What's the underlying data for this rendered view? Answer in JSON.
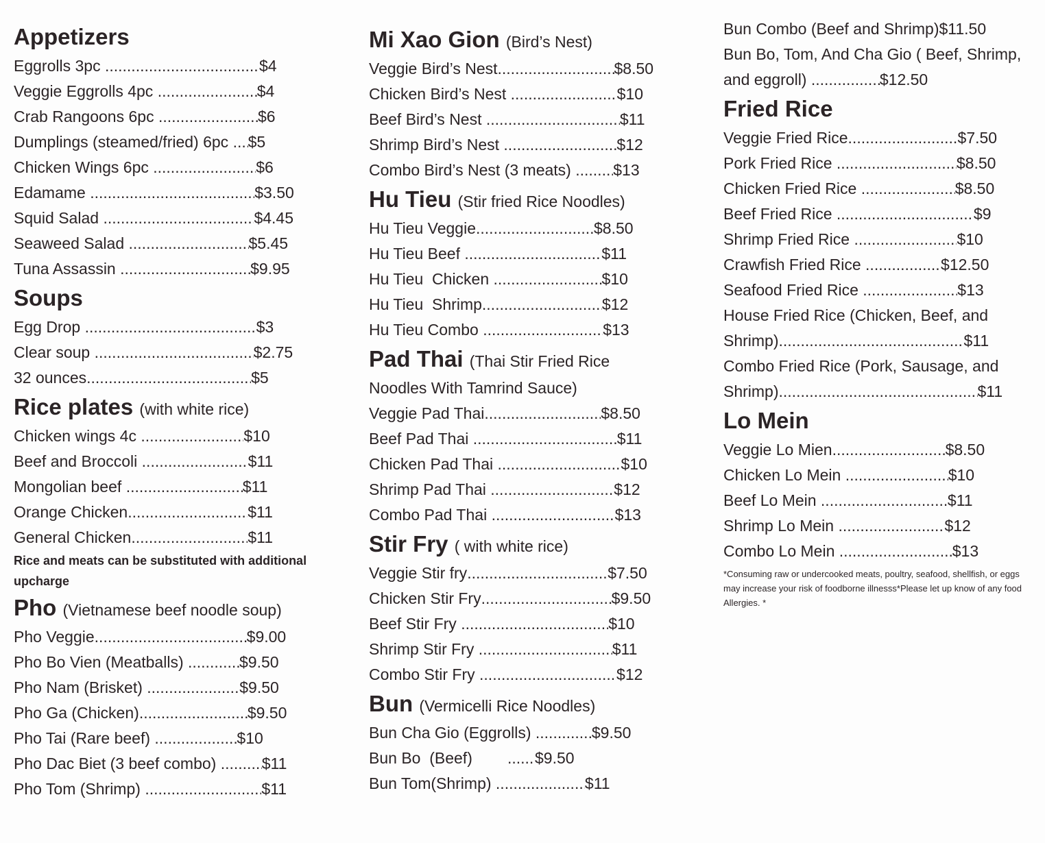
{
  "columns": [
    {
      "sections": [
        {
          "title": "Appetizers",
          "items": [
            {
              "name": "Eggrolls 3pc ",
              "price": "$4",
              "dots": 225
            },
            {
              "name": "Veggie Eggrolls 4pc ",
              "price": "$4",
              "dots": 145
            },
            {
              "name": "Crab Rangoons 6pc ",
              "price": "$6",
              "dots": 145
            },
            {
              "name": "Dumplings (steamed/fried) 6pc ",
              "price": "$5",
              "dots": 22
            },
            {
              "name": "Chicken Wings 6pc ",
              "price": "$6",
              "dots": 150
            },
            {
              "name": "Edamame ",
              "price": "$3.50",
              "dots": 240
            },
            {
              "name": "Squid Salad ",
              "price": "$4.45",
              "dots": 220
            },
            {
              "name": "Seaweed Salad ",
              "price": "$5.45",
              "dots": 175
            },
            {
              "name": "Tuna Assassin ",
              "price": "$9.95",
              "dots": 190
            }
          ]
        },
        {
          "title": "Soups",
          "items": [
            {
              "name": "Egg Drop ",
              "price": "$3",
              "dots": 250
            },
            {
              "name": "Clear soup ",
              "price": "$2.75",
              "dots": 232
            },
            {
              "name": "32 ounces",
              "price": "$5",
              "dots": 240
            }
          ]
        },
        {
          "title": "Rice plates",
          "subtitle": "(with white rice)",
          "items": [
            {
              "name": "Chicken wings 4c ",
              "price": "$10",
              "dots": 150
            },
            {
              "name": "Beef and Broccoli ",
              "price": "$11",
              "dots": 155
            },
            {
              "name": "Mongolian beef ",
              "price": "$11",
              "dots": 170
            },
            {
              "name": "Orange Chicken",
              "price": "$11",
              "dots": 175
            },
            {
              "name": "General Chicken",
              "price": "$11",
              "dots": 170
            }
          ],
          "note": "Rice and meats can be substituted with additional upcharge"
        },
        {
          "title": "Pho",
          "subtitle": "(Vietnamese beef noodle soup)",
          "items": [
            {
              "name": "Pho Veggie",
              "price": "$9.00",
              "dots": 222
            },
            {
              "name": "Pho Bo Vien (Meatballs) ",
              "price": "$9.50",
              "dots": 75
            },
            {
              "name": "Pho Nam (Brisket) ",
              "price": "$9.50",
              "dots": 135
            },
            {
              "name": "Pho Ga (Chicken)",
              "price": "$9.50",
              "dots": 158
            },
            {
              "name": "Pho Tai (Rare beef) ",
              "price": "$10",
              "dots": 120
            },
            {
              "name": "Pho Dac Biet (3 beef combo) ",
              "price": "$11",
              "dots": 60
            },
            {
              "name": "Pho Tom (Shrimp) ",
              "price": "$11",
              "dots": 170
            }
          ]
        }
      ]
    },
    {
      "sections": [
        {
          "title": "Mi Xao Gion",
          "subtitle": "(Bird’s Nest)",
          "items": [
            {
              "name": "Veggie Bird’s Nest",
              "price": "$8.50",
              "dots": 170
            },
            {
              "name": "Chicken Bird’s Nest ",
              "price": "$10",
              "dots": 155
            },
            {
              "name": "Beef Bird’s Nest ",
              "price": "$11",
              "dots": 195
            },
            {
              "name": "Shrimp Bird’s Nest ",
              "price": "$12",
              "dots": 165
            },
            {
              "name": "Combo Bird’s Nest (3 meats) ",
              "price": "$13",
              "dots": 55
            }
          ]
        },
        {
          "title": "Hu Tieu",
          "subtitle": "(Stir fried Rice Noodles)",
          "items": [
            {
              "name": "Hu Tieu Veggie",
              "price": "$8.50",
              "dots": 172
            },
            {
              "name": "Hu Tieu Beef ",
              "price": "$11",
              "dots": 200
            },
            {
              "name": "Hu Tieu  Chicken ",
              "price": "$10",
              "dots": 158
            },
            {
              "name": "Hu Tieu  Shrimp",
              "price": "$12",
              "dots": 175
            },
            {
              "name": "Hu Tieu Combo ",
              "price": "$13",
              "dots": 175
            }
          ]
        },
        {
          "title": "Pad Thai",
          "subtitle": "(Thai Stir Fried Rice",
          "subtitle2": "Noodles With Tamrind Sauce)",
          "items": [
            {
              "name": "Veggie Pad Thai",
              "price": "$8.50",
              "dots": 170
            },
            {
              "name": "Beef Pad Thai ",
              "price": "$11",
              "dots": 210
            },
            {
              "name": "Chicken Pad Thai ",
              "price": "$10",
              "dots": 180
            },
            {
              "name": "Shrimp Pad Thai ",
              "price": "$12",
              "dots": 180
            },
            {
              "name": "Combo Pad Thai ",
              "price": "$13",
              "dots": 180
            }
          ]
        },
        {
          "title": "Stir Fry",
          "subtitle": "( with white rice)",
          "items": [
            {
              "name": "Veggie Stir fry",
              "price": "$7.50",
              "dots": 205
            },
            {
              "name": "Chicken Stir Fry",
              "price": "$9.50",
              "dots": 190
            },
            {
              "name": "Beef Stir Fry ",
              "price": "$10",
              "dots": 215
            },
            {
              "name": "Shrimp Stir Fry ",
              "price": "$11",
              "dots": 195
            },
            {
              "name": "Combo Stir Fry ",
              "price": "$12",
              "dots": 200
            }
          ]
        },
        {
          "title": "Bun",
          "subtitle": "(Vermicelli Rice Noodles)",
          "items": [
            {
              "name": "Bun Cha Gio (Eggrolls) ",
              "price": "$9.50",
              "dots": 82
            },
            {
              "name": "Bun Bo  (Beef)        ",
              "price": "$9.50",
              "dots": 40
            },
            {
              "name": "Bun Tom(Shrimp) ",
              "price": "$11",
              "dots": 130
            }
          ]
        }
      ]
    },
    {
      "sections": [
        {
          "title": "",
          "items": [
            {
              "name": "Bun Combo (Beef and Shrimp)",
              "price": "$11.50",
              "dots": 0
            },
            {
              "name_lines": [
                "Bun Bo, Tom, And Cha Gio ( Beef, Shrimp,",
                "and eggroll) "
              ],
              "price": "$12.50",
              "dots": 100
            }
          ]
        },
        {
          "title": "Fried Rice",
          "items": [
            {
              "name": "Veggie Fried Rice",
              "price": "$7.50",
              "dots": 160
            },
            {
              "name": "Pork Fried Rice ",
              "price": "$8.50",
              "dots": 175
            },
            {
              "name": "Chicken Fried Rice ",
              "price": "$8.50",
              "dots": 137
            },
            {
              "name": "Beef Fried Rice ",
              "price": "$9",
              "dots": 200
            },
            {
              "name": "Shrimp Fried Rice ",
              "price": "$10",
              "dots": 150
            },
            {
              "name": "Crawfish Fried Rice ",
              "price": "$12.50",
              "dots": 110
            },
            {
              "name": "Seafood Fried Rice ",
              "price": "$13",
              "dots": 138
            },
            {
              "name_lines": [
                "House Fried Rice (Chicken, Beef, and",
                "Shrimp)"
              ],
              "price": "$11",
              "dots": 270
            },
            {
              "name_lines": [
                "Combo Fried Rice (Pork, Sausage, and",
                "Shrimp)"
              ],
              "price": "$11",
              "dots": 290
            }
          ]
        },
        {
          "title": "Lo Mein",
          "items": [
            {
              "name": "Veggie Lo Mien",
              "price": "$8.50",
              "dots": 165
            },
            {
              "name": "Chicken Lo Mein ",
              "price": "$10",
              "dots": 150
            },
            {
              "name": "Beef Lo Mein ",
              "price": "$11",
              "dots": 185
            },
            {
              "name": "Shrimp Lo Mein ",
              "price": "$12",
              "dots": 155
            },
            {
              "name": "Combo Lo Mein ",
              "price": "$13",
              "dots": 165
            }
          ],
          "fine": "*Consuming raw or undercooked meats, poultry, seafood, shellfish, or eggs may increase your risk of foodborne illnesss*Please let up know of any food Allergies. *"
        }
      ]
    }
  ]
}
